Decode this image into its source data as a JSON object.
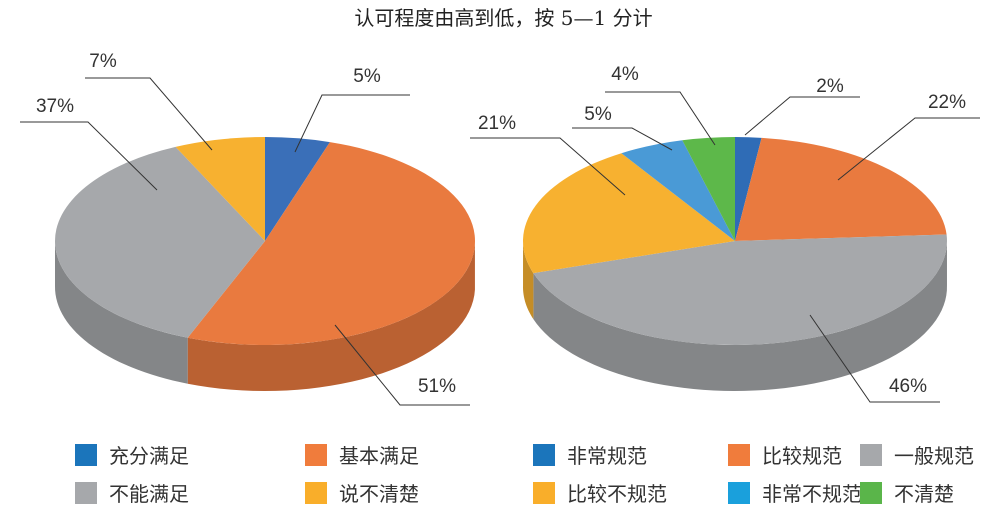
{
  "chart_data": [
    {
      "type": "pie",
      "title": "认可程度由高到低，按 5—1 分计",
      "style": "3d",
      "slices": [
        {
          "label": "充分满足",
          "value": 5,
          "text": "5%",
          "color": "#3a6fb8"
        },
        {
          "label": "基本满足",
          "value": 51,
          "text": "51%",
          "color": "#e97a3f"
        },
        {
          "label": "不能满足",
          "value": 37,
          "text": "37%",
          "color": "#a6a8ab"
        },
        {
          "label": "说不清楚",
          "value": 7,
          "text": "7%",
          "color": "#f7b130"
        }
      ]
    },
    {
      "type": "pie",
      "style": "3d",
      "slices": [
        {
          "label": "非常规范",
          "value": 2,
          "text": "2%",
          "color": "#2f6cb6"
        },
        {
          "label": "比较规范",
          "value": 22,
          "text": "22%",
          "color": "#e97a3f"
        },
        {
          "label": "一般规范",
          "value": 46,
          "text": "46%",
          "color": "#a6a8ab"
        },
        {
          "label": "比较不规范",
          "value": 21,
          "text": "21%",
          "color": "#f7b130"
        },
        {
          "label": "非常不规范",
          "value": 5,
          "text": "5%",
          "color": "#4a9ad6"
        },
        {
          "label": "不清楚",
          "value": 4,
          "text": "4%",
          "color": "#5db84a"
        }
      ]
    }
  ],
  "legend": [
    {
      "label": "充分满足",
      "color": "#1b75bb"
    },
    {
      "label": "基本满足",
      "color": "#f07c3c"
    },
    {
      "label": "非常规范",
      "color": "#1b75bb"
    },
    {
      "label": "比较规范",
      "color": "#f07c3c"
    },
    {
      "label": "一般规范",
      "color": "#a6a8ab"
    },
    {
      "label": "不能满足",
      "color": "#a6a8ab"
    },
    {
      "label": "说不清楚",
      "color": "#f9ae2a"
    },
    {
      "label": "比较不规范",
      "color": "#f9ae2a"
    },
    {
      "label": "非常不规范",
      "color": "#1aa0dc"
    },
    {
      "label": "不清楚",
      "color": "#5ab54a"
    }
  ]
}
